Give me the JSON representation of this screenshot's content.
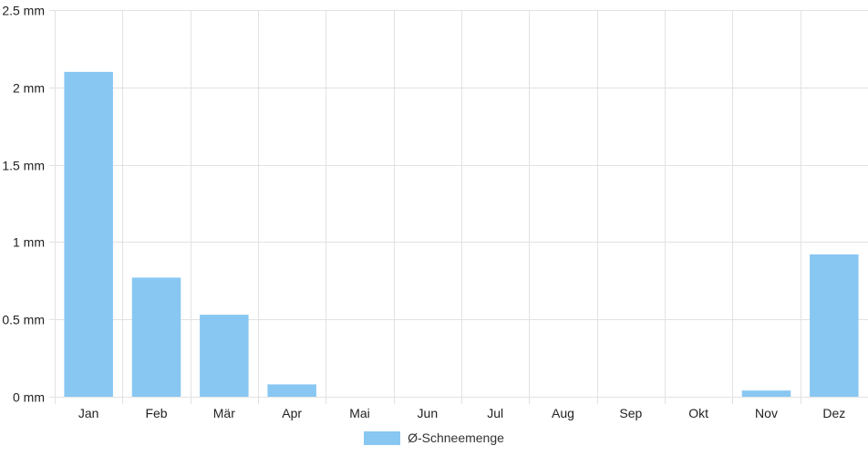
{
  "chart_data": {
    "type": "bar",
    "categories": [
      "Jan",
      "Feb",
      "Mär",
      "Apr",
      "Mai",
      "Jun",
      "Jul",
      "Aug",
      "Sep",
      "Okt",
      "Nov",
      "Dez"
    ],
    "series": [
      {
        "name": "Ø-Schneemenge",
        "values": [
          2.1,
          0.77,
          0.53,
          0.08,
          0,
          0,
          0,
          0,
          0,
          0,
          0.04,
          0.92
        ]
      }
    ],
    "unit": "mm",
    "ylim": [
      0,
      2.5
    ],
    "yticks": [
      0,
      0.5,
      1,
      1.5,
      2,
      2.5
    ],
    "ytick_labels": [
      "0 mm",
      "0.5 mm",
      "1 mm",
      "1.5 mm",
      "2 mm",
      "2.5 mm"
    ],
    "grid": true,
    "legend_position": "bottom",
    "colors": {
      "bar": "#88c7f2",
      "grid": "#e2e2e2"
    }
  }
}
